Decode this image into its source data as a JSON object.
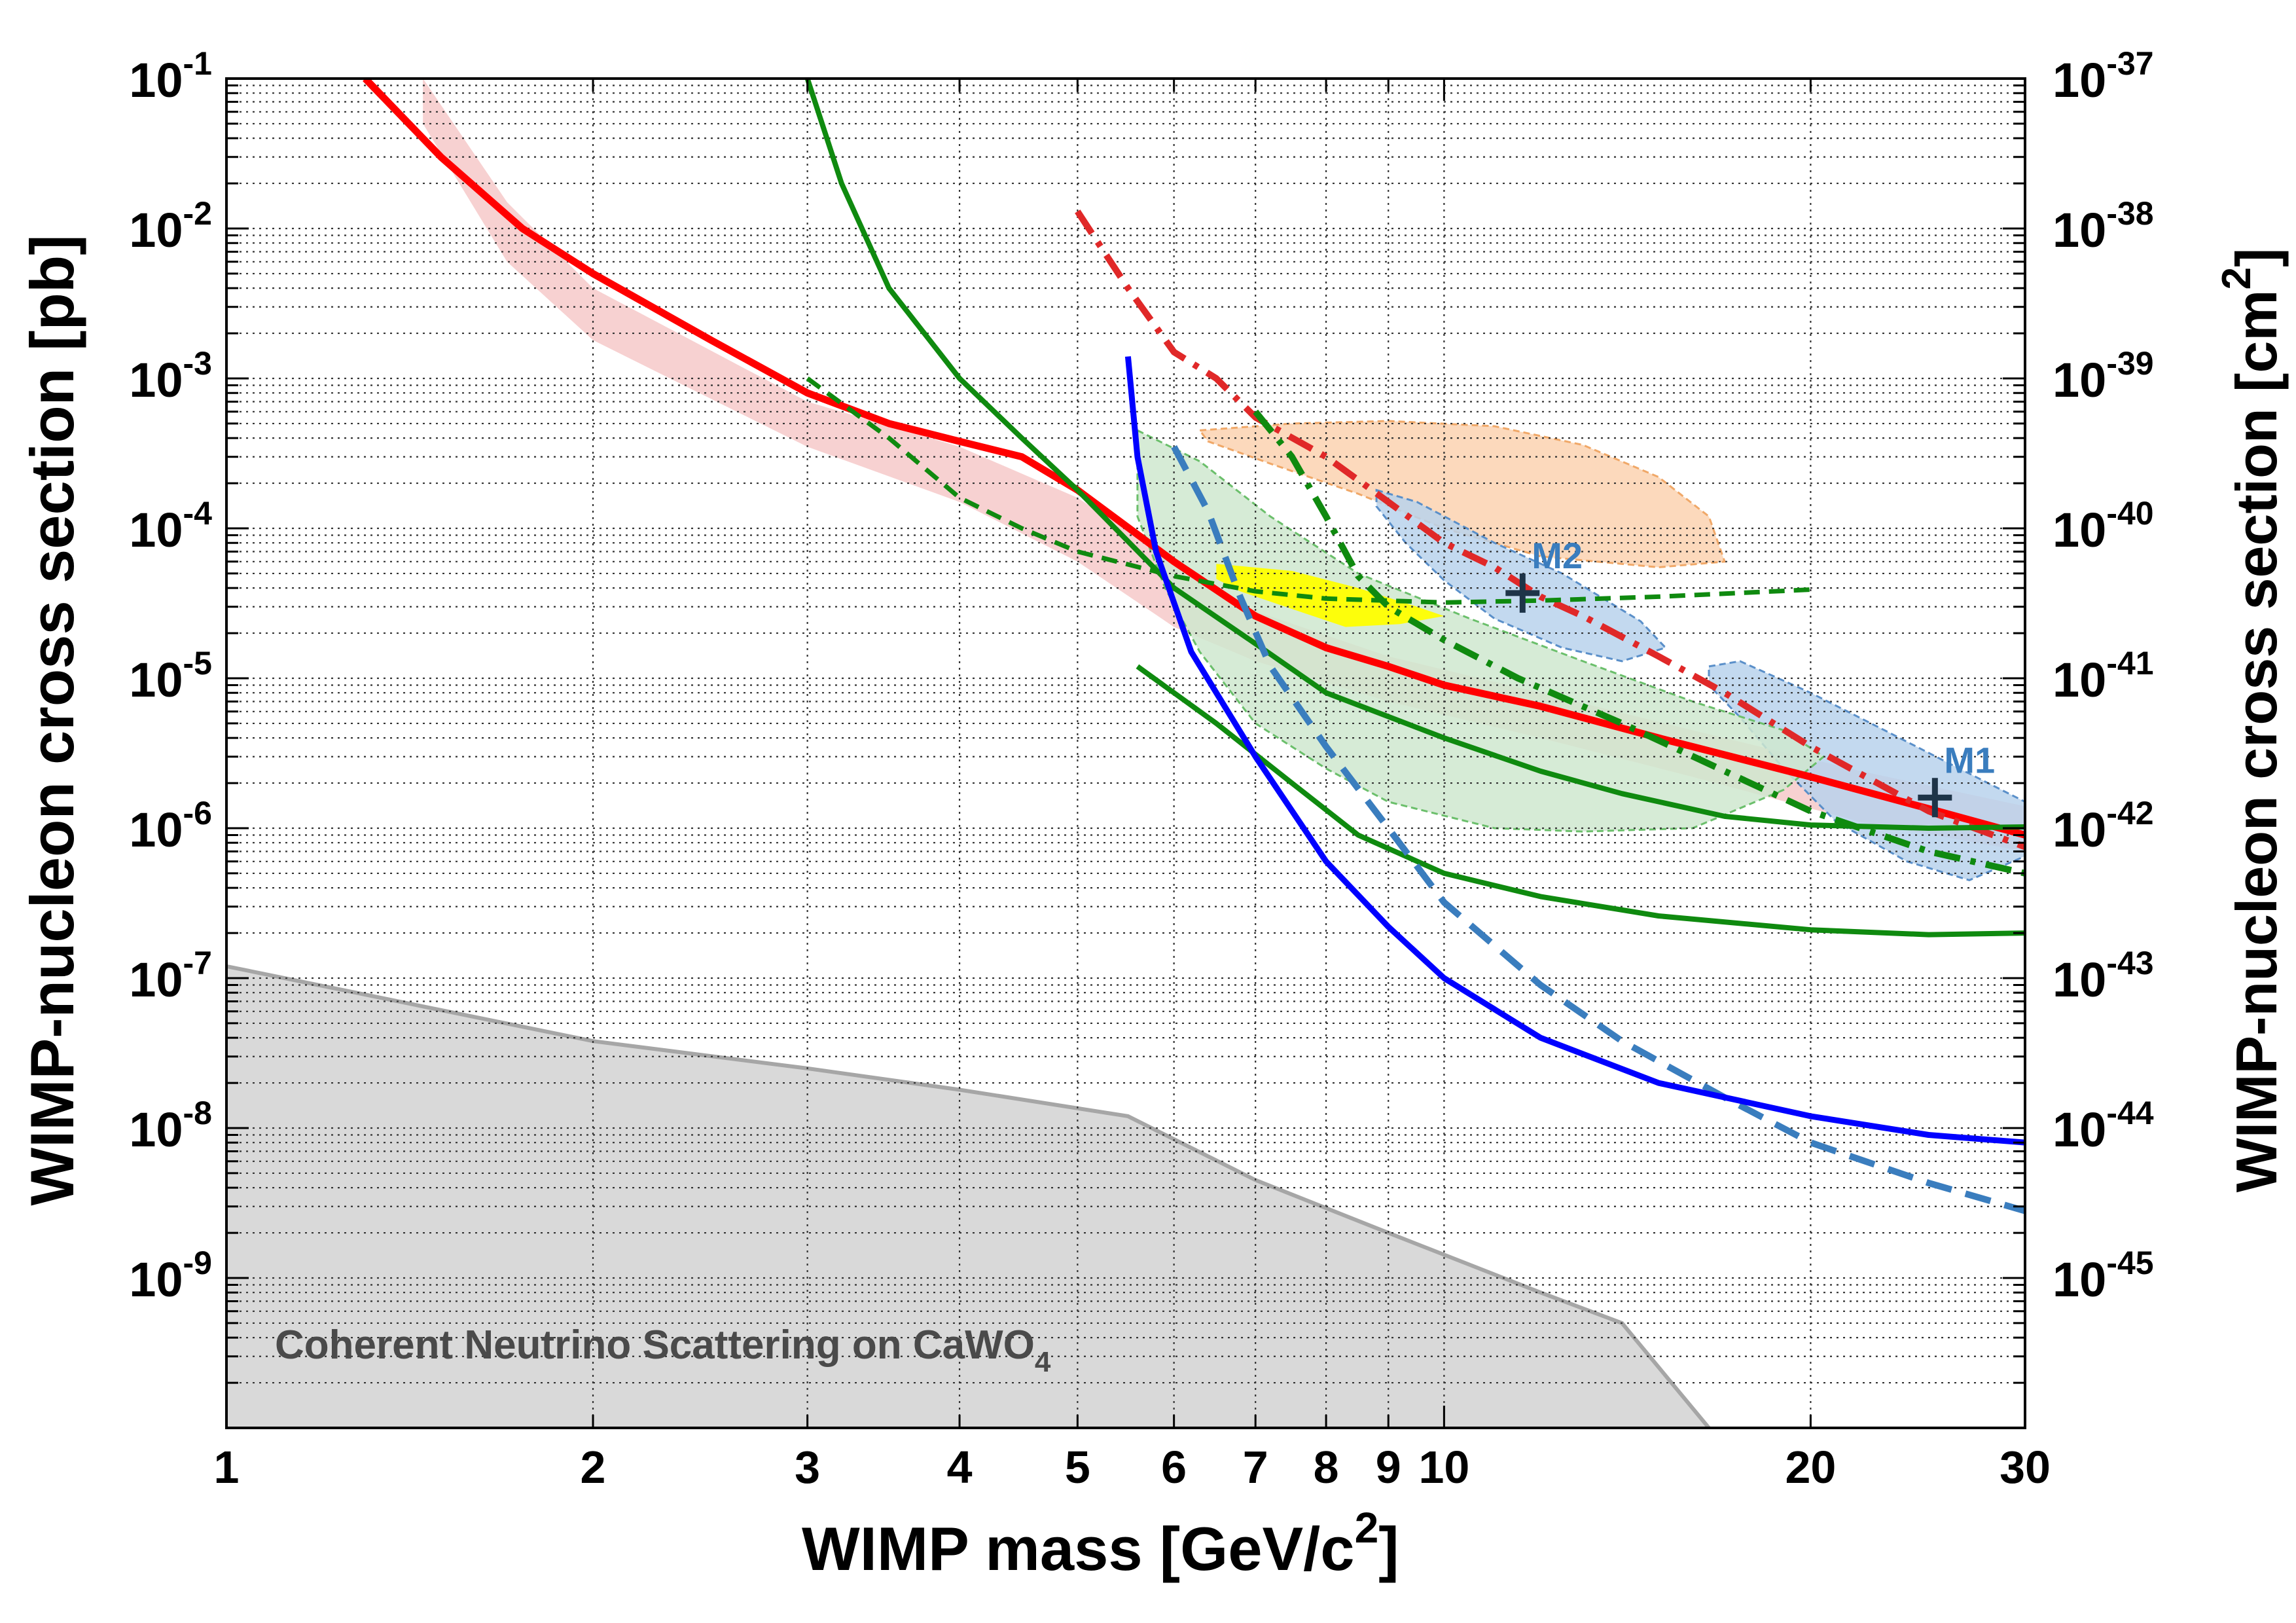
{
  "chart_data": {
    "type": "line",
    "xlabel_main": "WIMP mass [GeV/c",
    "xlabel_sup": "2",
    "xlabel_end": "]",
    "ylabel_left": "WIMP-nucleon cross section [pb]",
    "ylabel_right_main": "WIMP-nucleon cross section [cm",
    "ylabel_right_sup": "2",
    "ylabel_right_end": "]",
    "x_scale": "log",
    "y_scale": "log",
    "xlim": [
      1,
      30
    ],
    "ylim_pb": [
      1e-10,
      0.1
    ],
    "ylim_cm2": [
      1e-46,
      1e-37
    ],
    "grid": true,
    "x_ticks": [
      {
        "v": 1,
        "l": "1"
      },
      {
        "v": 2,
        "l": "2"
      },
      {
        "v": 3,
        "l": "3"
      },
      {
        "v": 4,
        "l": "4"
      },
      {
        "v": 5,
        "l": "5"
      },
      {
        "v": 6,
        "l": "6"
      },
      {
        "v": 7,
        "l": "7"
      },
      {
        "v": 8,
        "l": "8"
      },
      {
        "v": 9,
        "l": "9"
      },
      {
        "v": 10,
        "l": "10"
      },
      {
        "v": 20,
        "l": "20"
      },
      {
        "v": 30,
        "l": "30"
      }
    ],
    "y_ticks_left": [
      {
        "v": 0.1,
        "b": "10",
        "e": "-1"
      },
      {
        "v": 0.01,
        "b": "10",
        "e": "-2"
      },
      {
        "v": 0.001,
        "b": "10",
        "e": "-3"
      },
      {
        "v": 0.0001,
        "b": "10",
        "e": "-4"
      },
      {
        "v": 1e-05,
        "b": "10",
        "e": "-5"
      },
      {
        "v": 1e-06,
        "b": "10",
        "e": "-6"
      },
      {
        "v": 1e-07,
        "b": "10",
        "e": "-7"
      },
      {
        "v": 1e-08,
        "b": "10",
        "e": "-8"
      },
      {
        "v": 1e-09,
        "b": "10",
        "e": "-9"
      }
    ],
    "y_ticks_right": [
      {
        "v": 1e-37,
        "b": "10",
        "e": "-37"
      },
      {
        "v": 1e-38,
        "b": "10",
        "e": "-38"
      },
      {
        "v": 1e-39,
        "b": "10",
        "e": "-39"
      },
      {
        "v": 1e-40,
        "b": "10",
        "e": "-40"
      },
      {
        "v": 1e-41,
        "b": "10",
        "e": "-41"
      },
      {
        "v": 1e-42,
        "b": "10",
        "e": "-42"
      },
      {
        "v": 1e-43,
        "b": "10",
        "e": "-43"
      },
      {
        "v": 1e-44,
        "b": "10",
        "e": "-44"
      },
      {
        "v": 1e-45,
        "b": "10",
        "e": "-45"
      }
    ],
    "neutrino_label_main": "Coherent Neutrino Scattering on CaWO",
    "neutrino_label_sub": "4",
    "neutrino_floor": [
      [
        1,
        1.2e-07
      ],
      [
        2,
        3.8e-08
      ],
      [
        3,
        2.5e-08
      ],
      [
        4,
        1.8e-08
      ],
      [
        5.5,
        1.2e-08
      ],
      [
        7,
        4.5e-09
      ],
      [
        9,
        2e-09
      ],
      [
        12,
        8e-10
      ],
      [
        14,
        5e-10
      ],
      [
        16.5,
        1e-10
      ]
    ],
    "regions": [
      {
        "key": "pink_band",
        "fill": "#f5c6c6",
        "opacity": 0.8,
        "upper": [
          [
            1.45,
            0.1
          ],
          [
            1.7,
            0.015
          ],
          [
            2,
            0.004
          ],
          [
            3,
            0.0007
          ],
          [
            4,
            0.00035
          ],
          [
            5,
            0.00016
          ],
          [
            6,
            6e-05
          ],
          [
            7,
            2.8e-05
          ],
          [
            9,
            1.4e-05
          ],
          [
            12,
            8e-06
          ],
          [
            16,
            4.5e-06
          ],
          [
            22,
            2.4e-06
          ],
          [
            30,
            1.4e-06
          ]
        ],
        "lower": [
          [
            30,
            7e-07
          ],
          [
            22,
            1.1e-06
          ],
          [
            16,
            2.2e-06
          ],
          [
            12,
            4e-06
          ],
          [
            9,
            7e-06
          ],
          [
            7,
            1.3e-05
          ],
          [
            6,
            2.2e-05
          ],
          [
            5,
            6e-05
          ],
          [
            4,
            0.00015
          ],
          [
            3,
            0.00035
          ],
          [
            2,
            0.0018
          ],
          [
            1.7,
            0.006
          ],
          [
            1.45,
            0.05
          ]
        ]
      },
      {
        "key": "orange_region",
        "fill": "#fcd2b0",
        "opacity": 0.85,
        "stroke": "#f0a868",
        "points": [
          [
            6.3,
            0.00045
          ],
          [
            7.5,
            0.0005
          ],
          [
            9,
            0.00052
          ],
          [
            11,
            0.00048
          ],
          [
            13,
            0.00036
          ],
          [
            15,
            0.00022
          ],
          [
            16.5,
            0.00012
          ],
          [
            17,
            6e-05
          ],
          [
            15,
            5.5e-05
          ],
          [
            12,
            6.5e-05
          ],
          [
            10,
            0.0001
          ],
          [
            8.5,
            0.00017
          ],
          [
            7.2,
            0.00027
          ],
          [
            6.4,
            0.00038
          ]
        ]
      },
      {
        "key": "blue_region_m2",
        "fill": "#b8d2ec",
        "opacity": 0.85,
        "stroke": "#5a8fc9",
        "points": [
          [
            8.8,
            0.00018
          ],
          [
            9.5,
            0.00015
          ],
          [
            11,
            8e-05
          ],
          [
            12.5,
            5e-05
          ],
          [
            14.5,
            2.4e-05
          ],
          [
            15.2,
            1.6e-05
          ],
          [
            14,
            1.3e-05
          ],
          [
            12.5,
            1.6e-05
          ],
          [
            11,
            2.5e-05
          ],
          [
            10,
            4.5e-05
          ],
          [
            9.3,
            8e-05
          ],
          [
            8.8,
            0.00014
          ]
        ]
      },
      {
        "key": "blue_region_m1",
        "fill": "#b8d2ec",
        "opacity": 0.85,
        "stroke": "#5a8fc9",
        "points": [
          [
            16.5,
            1.2e-05
          ],
          [
            17.5,
            1.3e-05
          ],
          [
            20,
            8e-06
          ],
          [
            23,
            4.5e-06
          ],
          [
            26,
            2.7e-06
          ],
          [
            30,
            1.5e-06
          ],
          [
            30,
            6.5e-07
          ],
          [
            27,
            4.5e-07
          ],
          [
            24,
            6e-07
          ],
          [
            21,
            1.1e-06
          ],
          [
            19,
            2.5e-06
          ],
          [
            17.5,
            5.5e-06
          ],
          [
            16.5,
            9e-06
          ]
        ]
      },
      {
        "key": "green_region",
        "fill": "#cfe8cf",
        "opacity": 0.85,
        "stroke": "#6bbf6b",
        "points": [
          [
            5.6,
            0.00045
          ],
          [
            6.3,
            0.00028
          ],
          [
            7.2,
            0.00012
          ],
          [
            8.5,
            5e-05
          ],
          [
            10.5,
            2.5e-05
          ],
          [
            13,
            1.3e-05
          ],
          [
            16,
            7e-06
          ],
          [
            19,
            4.5e-06
          ],
          [
            20.5,
            3e-06
          ],
          [
            19,
            1.8e-06
          ],
          [
            16,
            1e-06
          ],
          [
            13,
            9.5e-07
          ],
          [
            11,
            1e-06
          ],
          [
            9,
            1.5e-06
          ],
          [
            8,
            2.5e-06
          ],
          [
            7,
            5e-06
          ],
          [
            6.3,
            1.5e-05
          ],
          [
            5.9,
            4e-05
          ],
          [
            5.6,
            0.00012
          ]
        ]
      },
      {
        "key": "yellow_region",
        "fill": "#ffff00",
        "opacity": 0.95,
        "points": [
          [
            6.5,
            5.8e-05
          ],
          [
            7.5,
            5.2e-05
          ],
          [
            8.5,
            4e-05
          ],
          [
            9.5,
            3e-05
          ],
          [
            10,
            2.6e-05
          ],
          [
            9.2,
            2.3e-05
          ],
          [
            8.3,
            2.2e-05
          ],
          [
            7.5,
            2.9e-05
          ],
          [
            6.8,
            3.8e-05
          ],
          [
            6.5,
            4.6e-05
          ]
        ]
      }
    ],
    "curves": [
      {
        "key": "red_solid",
        "color": "#ff0000",
        "width": 11,
        "dash": "",
        "points": [
          [
            1.3,
            0.1
          ],
          [
            1.5,
            0.03
          ],
          [
            1.75,
            0.01
          ],
          [
            2,
            0.005
          ],
          [
            2.5,
            0.0018
          ],
          [
            3,
            0.0008
          ],
          [
            3.5,
            0.0005
          ],
          [
            4,
            0.00038
          ],
          [
            4.5,
            0.0003
          ],
          [
            5,
            0.00018
          ],
          [
            6,
            6e-05
          ],
          [
            7,
            2.6e-05
          ],
          [
            8,
            1.6e-05
          ],
          [
            9,
            1.2e-05
          ],
          [
            10,
            9e-06
          ],
          [
            12,
            6.5e-06
          ],
          [
            15,
            4e-06
          ],
          [
            20,
            2.2e-06
          ],
          [
            25,
            1.35e-06
          ],
          [
            30,
            9e-07
          ]
        ]
      },
      {
        "key": "red_dashdot",
        "color": "#e02828",
        "width": 10,
        "dash": "40,16,8,16",
        "points": [
          [
            5,
            0.013
          ],
          [
            5.5,
            0.004
          ],
          [
            6,
            0.0015
          ],
          [
            6.5,
            0.001
          ],
          [
            7,
            0.00055
          ],
          [
            8,
            0.0003
          ],
          [
            9,
            0.00015
          ],
          [
            10,
            8e-05
          ],
          [
            11,
            5.5e-05
          ],
          [
            12,
            3.5e-05
          ],
          [
            13,
            2.6e-05
          ],
          [
            15,
            1.4e-05
          ],
          [
            17,
            8e-06
          ],
          [
            20,
            3.5e-06
          ],
          [
            25,
            1.3e-06
          ],
          [
            30,
            7.5e-07
          ]
        ]
      },
      {
        "key": "green_solid_1",
        "color": "#0f8a0f",
        "width": 8,
        "dash": "",
        "points": [
          [
            3,
            0.1
          ],
          [
            3.2,
            0.02
          ],
          [
            3.5,
            0.004
          ],
          [
            4,
            0.001
          ],
          [
            4.5,
            0.0004
          ],
          [
            5,
            0.00018
          ],
          [
            6,
            4e-05
          ],
          [
            7,
            1.7e-05
          ],
          [
            8,
            8e-06
          ],
          [
            10,
            4e-06
          ],
          [
            12,
            2.4e-06
          ],
          [
            14,
            1.7e-06
          ],
          [
            17,
            1.2e-06
          ],
          [
            20,
            1.05e-06
          ],
          [
            25,
            1e-06
          ],
          [
            30,
            1.02e-06
          ]
        ]
      },
      {
        "key": "green_solid_2",
        "color": "#0f8a0f",
        "width": 8,
        "dash": "",
        "points": [
          [
            5.6,
            1.2e-05
          ],
          [
            6.5,
            5e-06
          ],
          [
            7.5,
            2e-06
          ],
          [
            8.5,
            9e-07
          ],
          [
            10,
            5e-07
          ],
          [
            12,
            3.5e-07
          ],
          [
            15,
            2.6e-07
          ],
          [
            20,
            2.1e-07
          ],
          [
            25,
            1.95e-07
          ],
          [
            30,
            2e-07
          ]
        ]
      },
      {
        "key": "green_dashed",
        "color": "#0f8a0f",
        "width": 7,
        "dash": "24,14",
        "points": [
          [
            3,
            0.001
          ],
          [
            3.5,
            0.0004
          ],
          [
            4,
            0.00016
          ],
          [
            4.5,
            0.0001
          ],
          [
            5,
            7e-05
          ],
          [
            6,
            4.8e-05
          ],
          [
            7,
            3.8e-05
          ],
          [
            8,
            3.4e-05
          ],
          [
            10,
            3.2e-05
          ],
          [
            12,
            3.3e-05
          ],
          [
            15,
            3.5e-05
          ],
          [
            20,
            3.9e-05
          ]
        ]
      },
      {
        "key": "green_dashdot",
        "color": "#0f8a0f",
        "width": 10,
        "dash": "40,16,8,16",
        "points": [
          [
            7,
            0.0006
          ],
          [
            7.5,
            0.0003
          ],
          [
            8,
            0.00012
          ],
          [
            8.5,
            4.8e-05
          ],
          [
            9,
            3e-05
          ],
          [
            10,
            1.8e-05
          ],
          [
            11.5,
            1e-05
          ],
          [
            14,
            5e-06
          ],
          [
            17,
            2.4e-06
          ],
          [
            20,
            1.3e-06
          ],
          [
            25,
            7e-07
          ],
          [
            30,
            5e-07
          ]
        ]
      },
      {
        "key": "blue_dashed",
        "color": "#3a7dbe",
        "width": 10,
        "dash": "40,22",
        "points": [
          [
            6,
            0.00035
          ],
          [
            6.4,
            0.00013
          ],
          [
            6.8,
            3.5e-05
          ],
          [
            7.2,
            1.2e-05
          ],
          [
            8,
            3.5e-06
          ],
          [
            9,
            1e-06
          ],
          [
            10,
            3.2e-07
          ],
          [
            12,
            9e-08
          ],
          [
            14,
            3.8e-08
          ],
          [
            17,
            1.6e-08
          ],
          [
            20,
            8e-09
          ],
          [
            25,
            4.3e-09
          ],
          [
            30,
            2.8e-09
          ]
        ]
      },
      {
        "key": "blue_solid",
        "color": "#0000ff",
        "width": 9,
        "dash": "",
        "points": [
          [
            5.5,
            0.0014
          ],
          [
            5.6,
            0.0003
          ],
          [
            5.8,
            7e-05
          ],
          [
            6.2,
            1.5e-05
          ],
          [
            7,
            3e-06
          ],
          [
            8,
            6e-07
          ],
          [
            9,
            2.2e-07
          ],
          [
            10,
            1e-07
          ],
          [
            12,
            4e-08
          ],
          [
            15,
            2e-08
          ],
          [
            20,
            1.2e-08
          ],
          [
            25,
            9e-09
          ],
          [
            30,
            8e-09
          ]
        ]
      }
    ],
    "benchmarks": [
      {
        "label": "M1",
        "mass": 25.3,
        "xsec": 1.6e-06,
        "label_color": "#3a7dbe",
        "marker_color": "#1e3448"
      },
      {
        "label": "M2",
        "mass": 11.6,
        "xsec": 3.7e-05,
        "label_color": "#3a7dbe",
        "marker_color": "#1e3448"
      }
    ]
  }
}
